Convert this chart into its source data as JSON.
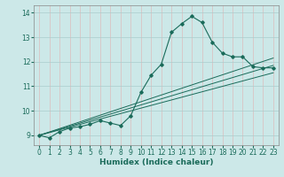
{
  "title": "",
  "xlabel": "Humidex (Indice chaleur)",
  "xlim": [
    -0.5,
    23.5
  ],
  "ylim": [
    8.6,
    14.3
  ],
  "yticks": [
    9,
    10,
    11,
    12,
    13,
    14
  ],
  "xticks": [
    0,
    1,
    2,
    3,
    4,
    5,
    6,
    7,
    8,
    9,
    10,
    11,
    12,
    13,
    14,
    15,
    16,
    17,
    18,
    19,
    20,
    21,
    22,
    23
  ],
  "bg_color": "#cce8e8",
  "vgrid_color": "#ddbcbc",
  "hgrid_color": "#aacccc",
  "line_color": "#1a6b5a",
  "main_x": [
    0,
    1,
    2,
    3,
    4,
    5,
    6,
    7,
    8,
    9,
    10,
    11,
    12,
    13,
    14,
    15,
    16,
    17,
    18,
    19,
    20,
    21,
    22,
    23
  ],
  "main_y": [
    9.0,
    8.9,
    9.15,
    9.3,
    9.35,
    9.45,
    9.6,
    9.5,
    9.4,
    9.8,
    10.75,
    11.45,
    11.9,
    13.2,
    13.55,
    13.85,
    13.6,
    12.8,
    12.35,
    12.2,
    12.2,
    11.8,
    11.75,
    11.75
  ],
  "trend1_x": [
    0,
    23
  ],
  "trend1_y": [
    9.0,
    12.15
  ],
  "trend2_x": [
    0,
    23
  ],
  "trend2_y": [
    9.0,
    11.55
  ],
  "trend3_x": [
    0,
    23
  ],
  "trend3_y": [
    9.0,
    11.85
  ]
}
